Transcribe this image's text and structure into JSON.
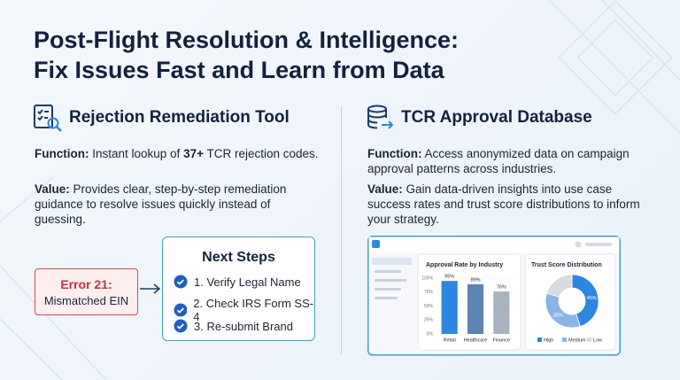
{
  "title": {
    "line1": "Post-Flight Resolution & Intelligence:",
    "line2": "Fix Issues Fast and Learn from Data"
  },
  "left": {
    "heading": "Rejection Remediation Tool",
    "function": {
      "label": "Function:",
      "before": " Instant lookup of ",
      "highlight": "37+",
      "after": " TCR rejection codes."
    },
    "value": {
      "label": "Value:",
      "text": " Provides clear, step-by-step remediation guidance to resolve issues quickly instead of guessing."
    },
    "error": {
      "code": "Error 21:",
      "message": "Mismatched EIN"
    },
    "next_steps": {
      "title": "Next Steps",
      "items": [
        "1. Verify Legal Name",
        "2. Check IRS Form SS-4",
        "3. Re-submit Brand"
      ]
    }
  },
  "right": {
    "heading": "TCR Approval Database",
    "function": {
      "label": "Function:",
      "text": " Access anonymized data on campaign approval patterns across industries."
    },
    "value": {
      "label": "Value:",
      "text": " Gain data-driven insights into use case success rates and trust score distributions to inform your strategy."
    },
    "dashboard": {
      "bar_chart": {
        "title": "Approval Rate by Industry",
        "categories": [
          "Retail",
          "Healthcare",
          "Finance"
        ],
        "values": [
          95,
          89,
          76
        ],
        "value_labels": [
          "95%",
          "89%",
          "76%"
        ],
        "colors": [
          "#2f86e0",
          "#5d84b3",
          "#a9b2bf"
        ],
        "ylim": [
          0,
          100
        ],
        "yticks": [
          {
            "value": 0,
            "label": "0%"
          },
          {
            "value": 25,
            "label": "25%"
          },
          {
            "value": 50,
            "label": "50%"
          },
          {
            "value": 75,
            "label": "75%"
          },
          {
            "value": 100,
            "label": "100%"
          }
        ]
      },
      "donut": {
        "title": "Trust Score Distribution",
        "categories": [
          "High",
          "Medium",
          "Low"
        ],
        "values": [
          45,
          35,
          20
        ],
        "value_labels": [
          "45%",
          "35%",
          null
        ],
        "colors": [
          "#2f86e0",
          "#8bb4e6",
          "#d6dbe2"
        ]
      }
    }
  }
}
